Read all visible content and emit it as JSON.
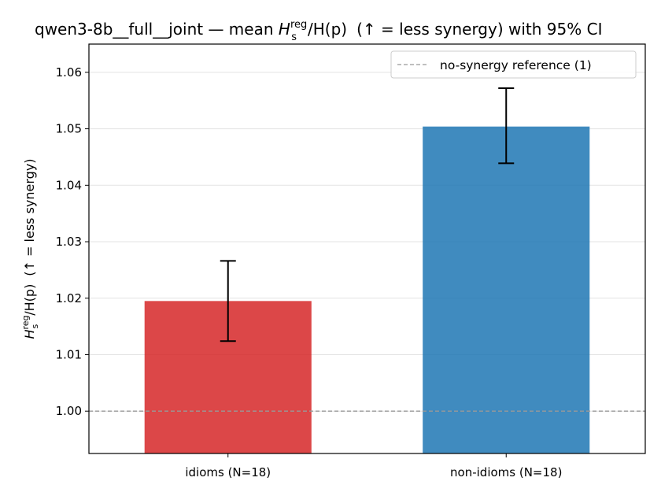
{
  "chart_data": {
    "type": "bar",
    "title": {
      "prefix": "qwen3-8b__full__joint — mean ",
      "math_base": "H",
      "math_sup": "reg",
      "math_sub": "s",
      "math_rest": "/H(p)",
      "suffix": "(↑ = less synergy) with 95% CI"
    },
    "ylabel": {
      "math_base": "H",
      "math_sup": "reg",
      "math_sub": "s",
      "math_rest": "/H(p)",
      "suffix": "(↑ = less synergy)"
    },
    "xlabel": "",
    "categories": [
      "idioms (N=18)",
      "non-idioms (N=18)"
    ],
    "values": [
      1.0195,
      1.0504
    ],
    "ci_low": [
      1.0124,
      1.0439
    ],
    "ci_high": [
      1.0266,
      1.0572
    ],
    "colors": [
      "#d62728",
      "#1f77b4"
    ],
    "bar_alpha": 0.85,
    "ylim": [
      0.9925,
      1.065
    ],
    "yticks": [
      1.0,
      1.01,
      1.02,
      1.03,
      1.04,
      1.05,
      1.06
    ],
    "ytick_labels": [
      "1.00",
      "1.01",
      "1.02",
      "1.03",
      "1.04",
      "1.05",
      "1.06"
    ],
    "grid": "y",
    "reference_line": {
      "value": 1.0,
      "label": "no-synergy reference (1)",
      "color": "#999999",
      "style": "dashed"
    },
    "legend_position": "top-right"
  }
}
